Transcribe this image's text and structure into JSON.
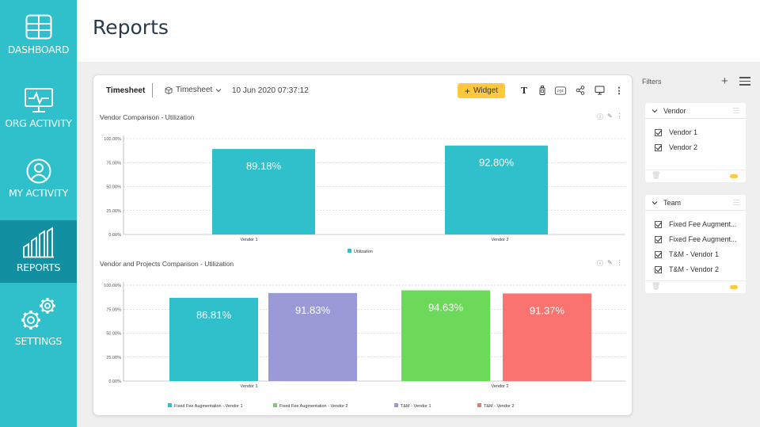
{
  "sidebar": {
    "items": [
      {
        "label": "DASHBOARD",
        "icon": "dashboard-icon"
      },
      {
        "label": "ORG ACTIVITY",
        "icon": "monitor-pulse-icon"
      },
      {
        "label": "MY ACTIVITY",
        "icon": "user-icon"
      },
      {
        "label": "REPORTS",
        "icon": "bar-chart-icon",
        "active": true
      },
      {
        "label": "SETTINGS",
        "icon": "gears-icon"
      }
    ],
    "bg_color": "#2fc0cc",
    "active_color": "#128fa0"
  },
  "header": {
    "title": "Reports"
  },
  "toolbar": {
    "title": "Timesheet",
    "timesheet_select": "Timesheet",
    "date": "10 Jun 2020 07:37:12",
    "widget_label": "Widget",
    "widget_color": "#ffc83d",
    "icons": [
      "text-icon",
      "bottle-icon",
      "pdf-icon",
      "share-icon",
      "monitor-icon",
      "more-vertical-icon"
    ]
  },
  "charts": {
    "chart1_title": "Vendor Comparison - Utilization",
    "chart2_title": "Vendor and Projects Comparison - Utilization"
  },
  "chart_data": [
    {
      "type": "bar",
      "title": "Vendor Comparison - Utilization",
      "categories": [
        "Vendor 1",
        "Vendor 2"
      ],
      "series": [
        {
          "name": "Utilization",
          "color": "#2fc0cc",
          "values": [
            89.18,
            92.8
          ]
        }
      ],
      "data_labels": [
        "89.18%",
        "92.80%"
      ],
      "y_ticks": [
        "0.00%",
        "25.00%",
        "50.00%",
        "75.00%",
        "100.00%"
      ],
      "ylim": [
        0,
        100
      ],
      "grid": true,
      "legend": "bottom"
    },
    {
      "type": "bar",
      "title": "Vendor and Projects Comparison - Utilization",
      "categories": [
        "Vendor 1",
        "Vendor 2"
      ],
      "series": [
        {
          "name": "Fixed Fee Augmentation -  Vendor 1",
          "color": "#2fc0cc",
          "values": [
            86.81,
            null
          ]
        },
        {
          "name": "Fixed Fee Augmentation -  Vendor 2",
          "color": "#9b9ad6",
          "values": [
            91.83,
            null
          ]
        },
        {
          "name": "T&M -  Vendor 1",
          "color": "#6cd95a",
          "values": [
            null,
            94.63
          ]
        },
        {
          "name": "T&M -  Vendor 2",
          "color": "#fb7370",
          "values": [
            null,
            91.37
          ]
        }
      ],
      "data_labels": [
        "86.81%",
        "91.83%",
        "94.63%",
        "91.37%"
      ],
      "legend_colors": [
        "#2fc0cc",
        "#6cd95a",
        "#9b9ad6",
        "#fb7370"
      ],
      "legend_labels": [
        "Fixed Fee Augmentation -  Vendor 1",
        "Fixed Fee Augmentation -  Vendor 2",
        "T&M -  Vendor 1",
        "T&M -  Vendor 2"
      ],
      "y_ticks": [
        "0.00%",
        "25.00%",
        "50.00%",
        "75.00%",
        "100.00%"
      ],
      "ylim": [
        0,
        100
      ],
      "grid": true,
      "legend": "bottom"
    }
  ],
  "filters": {
    "title": "Filters",
    "vendor": {
      "label": "Vendor",
      "items": [
        "Vendor 1",
        "Vendor 2"
      ]
    },
    "team": {
      "label": "Team",
      "items": [
        "Fixed Fee Augment...",
        "Fixed Fee Augment...",
        "T&M - Vendor 1",
        "T&M - Vendor 2"
      ]
    }
  }
}
